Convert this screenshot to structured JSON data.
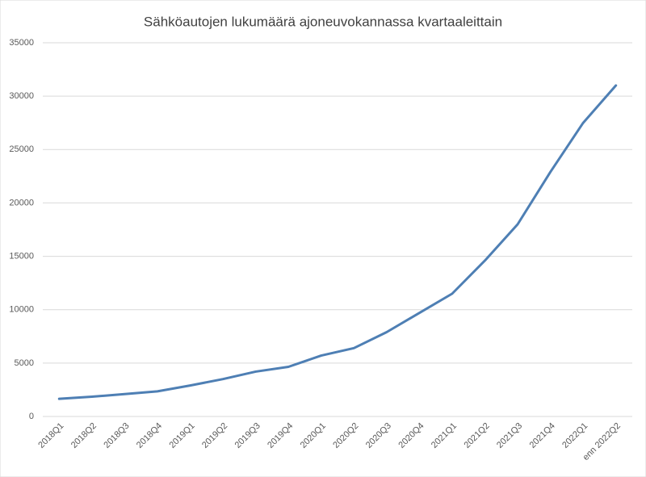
{
  "chart_data": {
    "type": "line",
    "title": "Sähköautojen lukumäärä ajoneuvokannassa kvartaaleittain",
    "categories": [
      "2018Q1",
      "2018Q2",
      "2018Q3",
      "2018Q4",
      "2019Q1",
      "2019Q2",
      "2019Q3",
      "2019Q4",
      "2020Q1",
      "2020Q2",
      "2020Q3",
      "2020Q4",
      "2021Q1",
      "2021Q2",
      "2021Q3",
      "2021Q4",
      "2022Q1",
      "enn 2022Q2"
    ],
    "values": [
      1650,
      1850,
      2100,
      2350,
      2900,
      3500,
      4200,
      4650,
      5700,
      6400,
      7900,
      9700,
      11500,
      14600,
      18000,
      22900,
      27500,
      31000
    ],
    "color": "#4e7fb4",
    "ylim": [
      0,
      35000
    ],
    "yticks": [
      0,
      5000,
      10000,
      15000,
      20000,
      25000,
      30000,
      35000
    ],
    "grid": true
  }
}
